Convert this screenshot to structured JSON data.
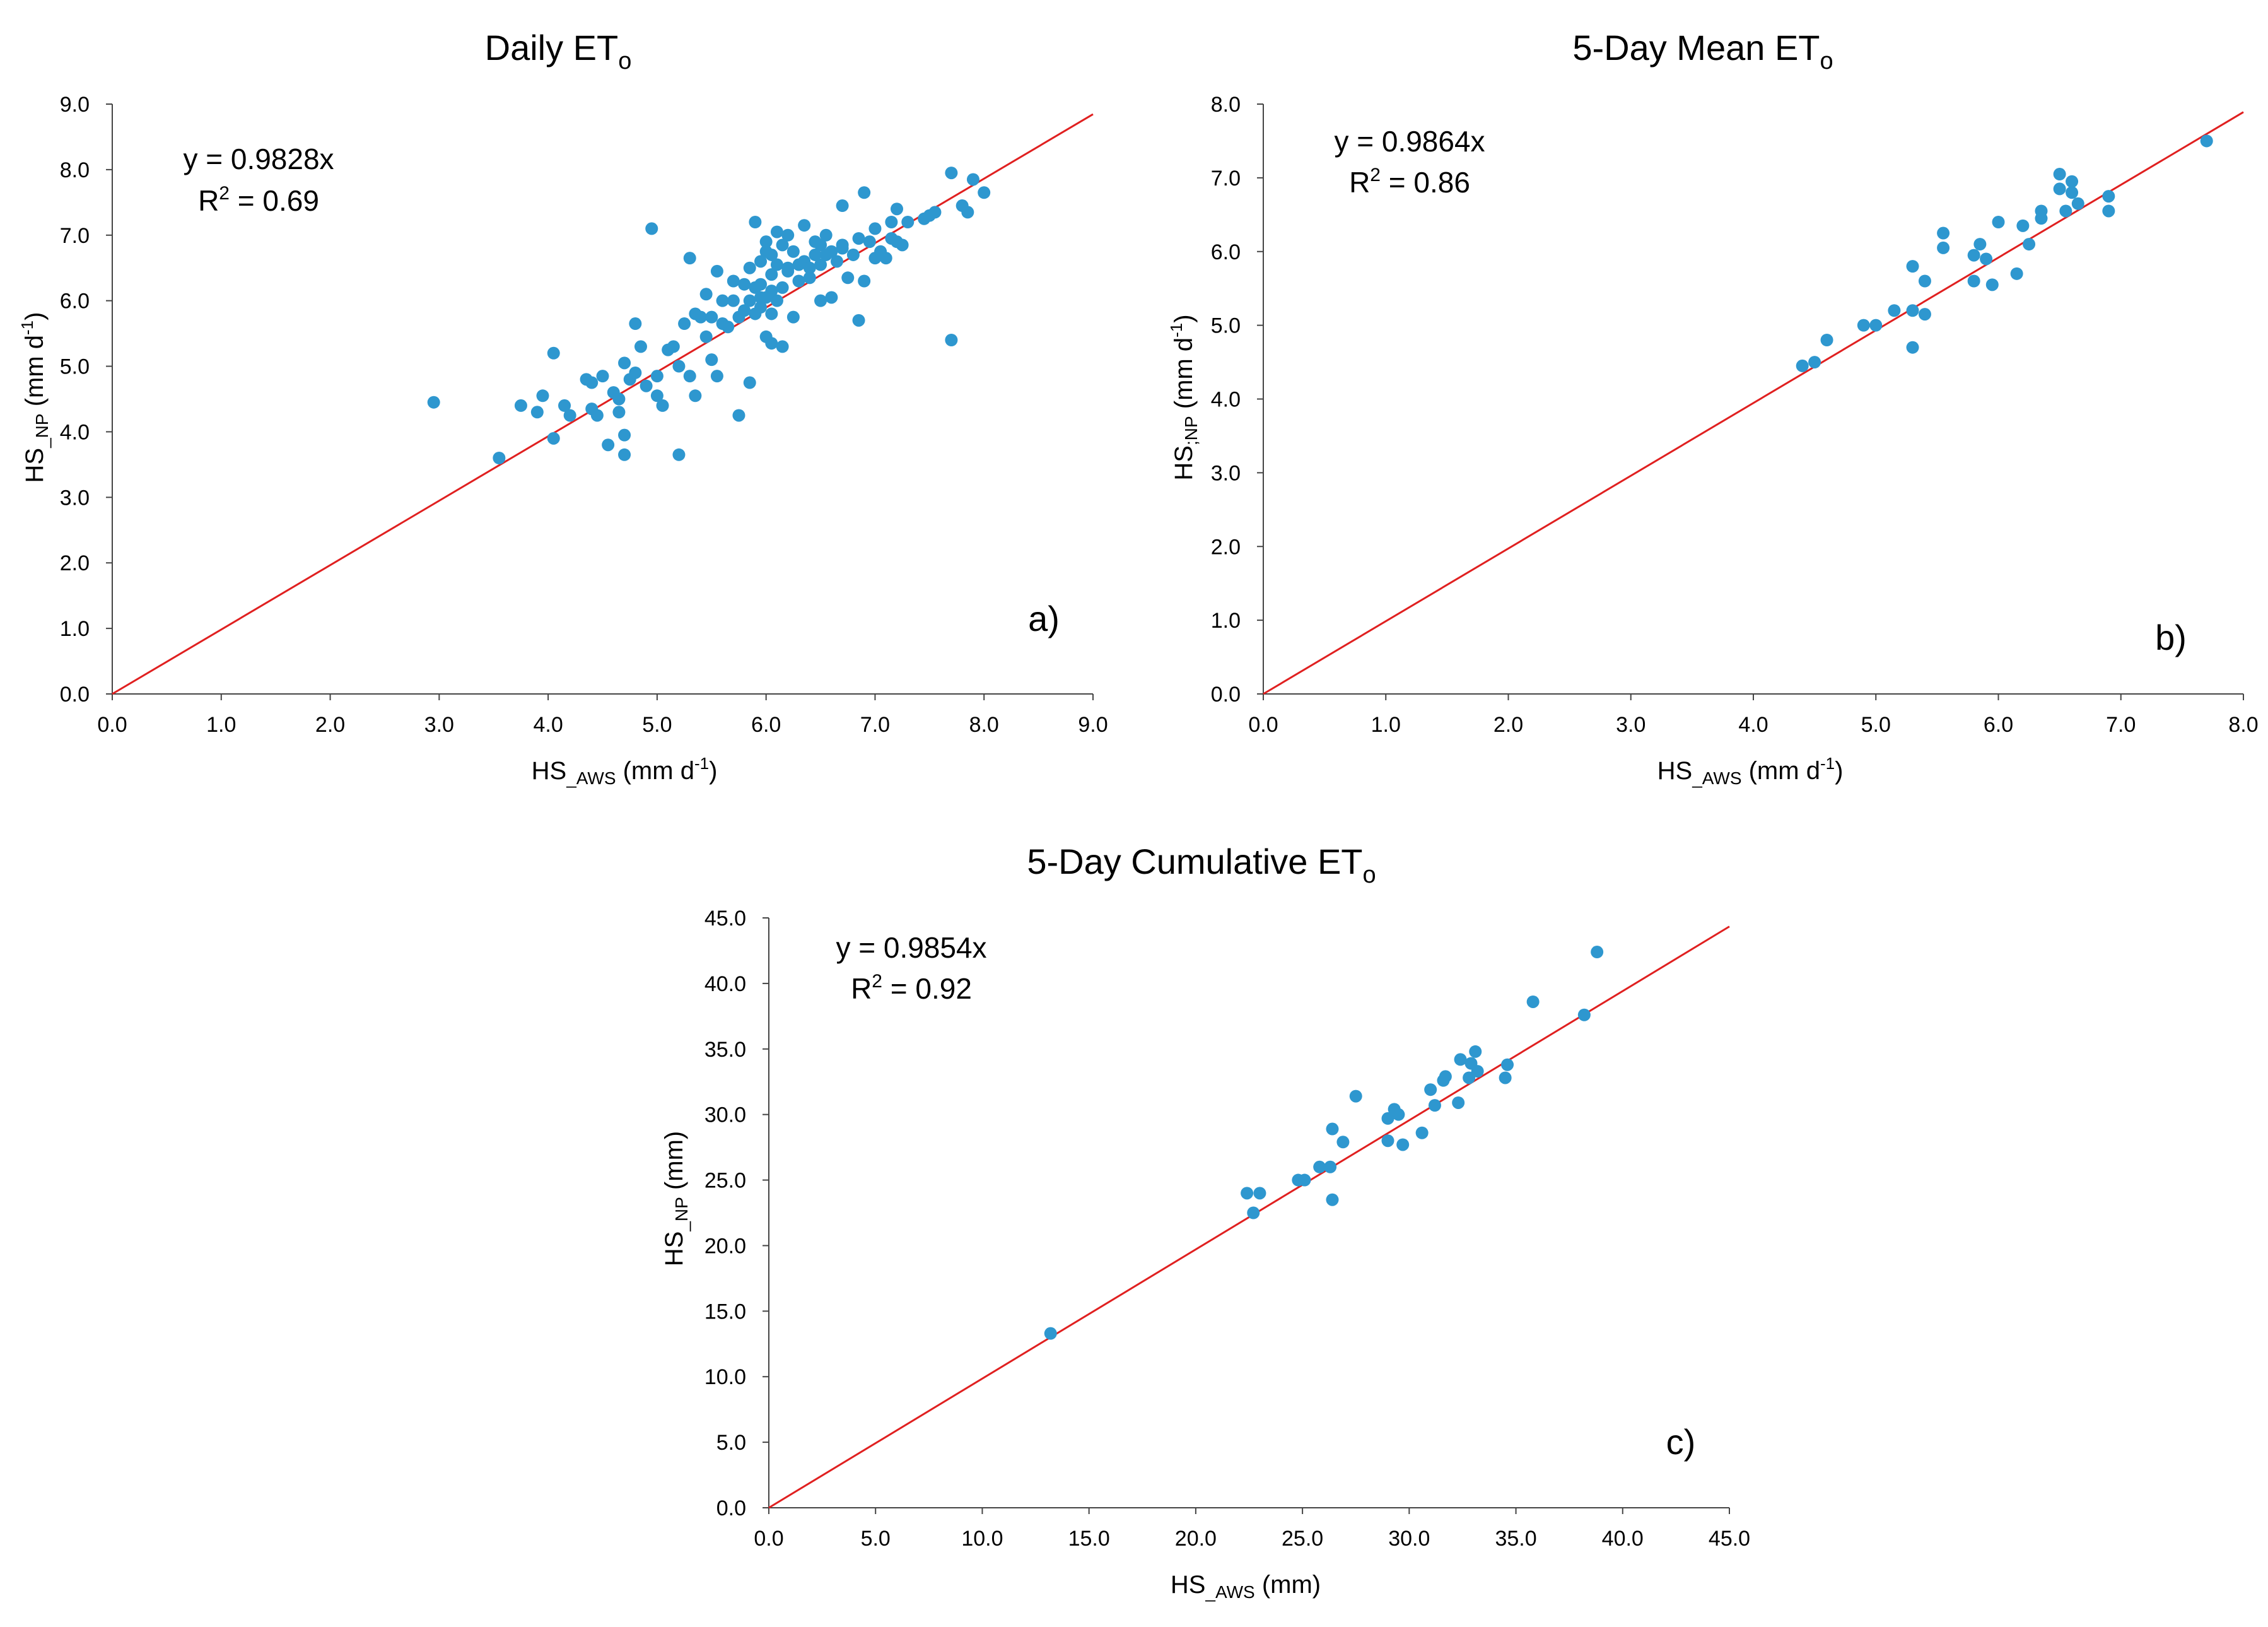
{
  "chart_data": [
    {
      "type": "scatter",
      "title": {
        "main": "Daily ET",
        "sub": "o"
      },
      "xlabel": {
        "main": "HS",
        "sub": "_AWS",
        "rest": " (mm d",
        "sup": "-1",
        "end": ")"
      },
      "ylabel": {
        "main": "HS",
        "sub": "_NP",
        "rest": " (mm d",
        "sup": "-1",
        "end": ")"
      },
      "xlim": [
        0,
        9
      ],
      "ylim": [
        0,
        9
      ],
      "xticks": [
        "0.0",
        "1.0",
        "2.0",
        "3.0",
        "4.0",
        "5.0",
        "6.0",
        "7.0",
        "8.0",
        "9.0"
      ],
      "yticks": [
        "0.0",
        "1.0",
        "2.0",
        "3.0",
        "4.0",
        "5.0",
        "6.0",
        "7.0",
        "8.0",
        "9.0"
      ],
      "equation": "y = 0.9828x",
      "r2": {
        "pre": "R",
        "sup": "2",
        "post": " = 0.69"
      },
      "panel": "a)",
      "trend_slope": 0.9828,
      "grid": false,
      "point_color": "#2E97CF",
      "line_color": "#E02020",
      "points": [
        [
          2.95,
          4.45
        ],
        [
          3.55,
          3.6
        ],
        [
          3.75,
          4.4
        ],
        [
          3.9,
          4.3
        ],
        [
          3.95,
          4.55
        ],
        [
          4.05,
          3.9
        ],
        [
          4.05,
          5.2
        ],
        [
          4.15,
          4.4
        ],
        [
          4.2,
          4.25
        ],
        [
          4.35,
          4.8
        ],
        [
          4.4,
          4.75
        ],
        [
          4.4,
          4.35
        ],
        [
          4.45,
          4.25
        ],
        [
          4.5,
          4.85
        ],
        [
          4.55,
          3.8
        ],
        [
          4.6,
          4.6
        ],
        [
          4.65,
          4.3
        ],
        [
          4.65,
          4.5
        ],
        [
          4.7,
          3.65
        ],
        [
          4.7,
          3.95
        ],
        [
          4.7,
          5.05
        ],
        [
          4.75,
          4.8
        ],
        [
          4.8,
          4.9
        ],
        [
          4.8,
          5.65
        ],
        [
          4.85,
          5.3
        ],
        [
          4.9,
          4.7
        ],
        [
          4.95,
          7.1
        ],
        [
          5.0,
          4.85
        ],
        [
          5.0,
          4.55
        ],
        [
          5.05,
          4.4
        ],
        [
          5.1,
          5.25
        ],
        [
          5.15,
          5.3
        ],
        [
          5.2,
          5.0
        ],
        [
          5.2,
          3.65
        ],
        [
          5.25,
          5.65
        ],
        [
          5.3,
          4.85
        ],
        [
          5.3,
          6.65
        ],
        [
          5.35,
          4.55
        ],
        [
          5.35,
          5.8
        ],
        [
          5.4,
          5.75
        ],
        [
          5.45,
          5.45
        ],
        [
          5.45,
          6.1
        ],
        [
          5.5,
          5.1
        ],
        [
          5.5,
          5.75
        ],
        [
          5.55,
          4.85
        ],
        [
          5.55,
          6.45
        ],
        [
          5.6,
          5.65
        ],
        [
          5.6,
          6.0
        ],
        [
          5.65,
          5.6
        ],
        [
          5.7,
          6.0
        ],
        [
          5.7,
          6.3
        ],
        [
          5.75,
          4.25
        ],
        [
          5.75,
          5.75
        ],
        [
          5.8,
          5.85
        ],
        [
          5.8,
          6.25
        ],
        [
          5.85,
          4.75
        ],
        [
          5.85,
          6.0
        ],
        [
          5.85,
          6.5
        ],
        [
          5.9,
          5.8
        ],
        [
          5.9,
          6.2
        ],
        [
          5.9,
          7.2
        ],
        [
          5.95,
          5.9
        ],
        [
          5.95,
          6.25
        ],
        [
          6.0,
          6.05
        ],
        [
          6.0,
          6.9
        ],
        [
          6.05,
          5.35
        ],
        [
          6.05,
          5.8
        ],
        [
          6.05,
          6.4
        ],
        [
          6.05,
          6.7
        ],
        [
          6.1,
          6.0
        ],
        [
          6.1,
          6.55
        ],
        [
          6.1,
          7.05
        ],
        [
          6.15,
          5.3
        ],
        [
          6.15,
          6.2
        ],
        [
          6.15,
          6.85
        ],
        [
          6.2,
          6.5
        ],
        [
          6.2,
          7.0
        ],
        [
          6.25,
          6.75
        ],
        [
          6.3,
          6.3
        ],
        [
          6.3,
          6.55
        ],
        [
          6.35,
          6.6
        ],
        [
          6.35,
          7.15
        ],
        [
          6.4,
          6.35
        ],
        [
          6.4,
          6.5
        ],
        [
          6.45,
          6.7
        ],
        [
          6.5,
          6.0
        ],
        [
          6.5,
          6.55
        ],
        [
          6.5,
          6.85
        ],
        [
          6.55,
          6.7
        ],
        [
          6.55,
          7.0
        ],
        [
          6.6,
          6.05
        ],
        [
          6.6,
          6.75
        ],
        [
          6.65,
          6.6
        ],
        [
          6.7,
          6.8
        ],
        [
          6.7,
          7.45
        ],
        [
          6.75,
          6.35
        ],
        [
          6.8,
          6.7
        ],
        [
          6.85,
          5.7
        ],
        [
          6.85,
          6.95
        ],
        [
          6.9,
          6.3
        ],
        [
          6.9,
          7.65
        ],
        [
          6.95,
          6.9
        ],
        [
          7.0,
          6.65
        ],
        [
          7.05,
          6.75
        ],
        [
          7.1,
          6.65
        ],
        [
          7.15,
          6.95
        ],
        [
          7.15,
          7.2
        ],
        [
          7.2,
          7.4
        ],
        [
          7.2,
          6.9
        ],
        [
          7.25,
          6.85
        ],
        [
          7.3,
          7.2
        ],
        [
          7.45,
          7.25
        ],
        [
          7.5,
          7.3
        ],
        [
          7.55,
          7.35
        ],
        [
          7.7,
          7.95
        ],
        [
          7.7,
          5.4
        ],
        [
          7.8,
          7.45
        ],
        [
          7.85,
          7.35
        ],
        [
          7.9,
          7.85
        ],
        [
          8.0,
          7.65
        ],
        [
          6.0,
          5.45
        ],
        [
          5.95,
          6.05
        ],
        [
          6.25,
          5.75
        ],
        [
          6.45,
          6.9
        ],
        [
          6.05,
          6.15
        ],
        [
          6.0,
          6.75
        ],
        [
          6.2,
          6.45
        ],
        [
          5.95,
          6.6
        ],
        [
          7.0,
          7.1
        ],
        [
          6.7,
          6.85
        ]
      ]
    },
    {
      "type": "scatter",
      "title": {
        "main": "5-Day Mean ET",
        "sub": "o"
      },
      "xlabel": {
        "main": "HS",
        "sub": "_AWS",
        "rest": " (mm d",
        "sup": "-1",
        "end": ")"
      },
      "ylabel": {
        "main": "HS",
        "sub": ";NP",
        "rest": " (mm d",
        "sup": "-1",
        "end": ")"
      },
      "xlim": [
        0,
        8
      ],
      "ylim": [
        0,
        8
      ],
      "xticks": [
        "0.0",
        "1.0",
        "2.0",
        "3.0",
        "4.0",
        "5.0",
        "6.0",
        "7.0",
        "8.0"
      ],
      "yticks": [
        "0.0",
        "1.0",
        "2.0",
        "3.0",
        "4.0",
        "5.0",
        "6.0",
        "7.0",
        "8.0"
      ],
      "equation": "y = 0.9864x",
      "r2": {
        "pre": "R",
        "sup": "2",
        "post": " = 0.86"
      },
      "panel": "b)",
      "trend_slope": 0.9864,
      "grid": false,
      "point_color": "#2E97CF",
      "line_color": "#E02020",
      "points": [
        [
          4.4,
          4.45
        ],
        [
          4.5,
          4.5
        ],
        [
          4.6,
          4.8
        ],
        [
          4.9,
          5.0
        ],
        [
          5.0,
          5.0
        ],
        [
          5.15,
          5.2
        ],
        [
          5.3,
          4.7
        ],
        [
          5.3,
          5.2
        ],
        [
          5.3,
          5.8
        ],
        [
          5.4,
          5.15
        ],
        [
          5.4,
          5.6
        ],
        [
          5.55,
          6.25
        ],
        [
          5.55,
          6.05
        ],
        [
          5.8,
          5.6
        ],
        [
          5.8,
          5.95
        ],
        [
          5.85,
          6.1
        ],
        [
          5.9,
          5.9
        ],
        [
          5.95,
          5.55
        ],
        [
          6.0,
          6.4
        ],
        [
          6.15,
          5.7
        ],
        [
          6.2,
          6.35
        ],
        [
          6.25,
          6.1
        ],
        [
          6.35,
          6.55
        ],
        [
          6.35,
          6.45
        ],
        [
          6.5,
          6.85
        ],
        [
          6.5,
          7.05
        ],
        [
          6.55,
          6.55
        ],
        [
          6.6,
          6.8
        ],
        [
          6.6,
          6.95
        ],
        [
          6.65,
          6.65
        ],
        [
          6.9,
          6.55
        ],
        [
          6.9,
          6.75
        ],
        [
          7.7,
          7.5
        ]
      ]
    },
    {
      "type": "scatter",
      "title": {
        "main": "5-Day Cumulative ET",
        "sub": "o"
      },
      "xlabel": {
        "main": "HS",
        "sub": "_AWS",
        "rest": " (mm)",
        "sup": "",
        "end": ""
      },
      "ylabel": {
        "main": "HS",
        "sub": "_NP",
        "rest": " (mm)",
        "sup": "",
        "end": ""
      },
      "xlim": [
        0,
        45
      ],
      "ylim": [
        0,
        45
      ],
      "xticks": [
        "0.0",
        "5.0",
        "10.0",
        "15.0",
        "20.0",
        "25.0",
        "30.0",
        "35.0",
        "40.0",
        "45.0"
      ],
      "yticks": [
        "0.0",
        "5.0",
        "10.0",
        "15.0",
        "20.0",
        "25.0",
        "30.0",
        "35.0",
        "40.0",
        "45.0"
      ],
      "equation": "y = 0.9854x",
      "r2": {
        "pre": "R",
        "sup": "2",
        "post": " = 0.92"
      },
      "panel": "c)",
      "trend_slope": 0.9854,
      "grid": false,
      "point_color": "#2E97CF",
      "line_color": "#E02020",
      "points": [
        [
          13.2,
          13.3
        ],
        [
          22.4,
          24.0
        ],
        [
          22.7,
          22.5
        ],
        [
          23.0,
          24.0
        ],
        [
          24.8,
          25.0
        ],
        [
          25.1,
          25.0
        ],
        [
          25.8,
          26.0
        ],
        [
          26.3,
          26.0
        ],
        [
          26.4,
          23.5
        ],
        [
          26.4,
          28.9
        ],
        [
          26.9,
          27.9
        ],
        [
          27.5,
          31.4
        ],
        [
          29.0,
          28.0
        ],
        [
          29.0,
          29.7
        ],
        [
          29.3,
          30.4
        ],
        [
          29.5,
          30.0
        ],
        [
          29.7,
          27.7
        ],
        [
          30.6,
          28.6
        ],
        [
          31.0,
          31.9
        ],
        [
          31.2,
          30.7
        ],
        [
          31.6,
          32.6
        ],
        [
          31.7,
          32.9
        ],
        [
          32.3,
          30.9
        ],
        [
          32.4,
          34.2
        ],
        [
          32.8,
          32.8
        ],
        [
          32.9,
          33.9
        ],
        [
          33.1,
          34.8
        ],
        [
          33.2,
          33.3
        ],
        [
          34.5,
          32.8
        ],
        [
          34.6,
          33.8
        ],
        [
          35.8,
          38.6
        ],
        [
          38.2,
          37.6
        ],
        [
          38.8,
          42.4
        ]
      ]
    }
  ]
}
